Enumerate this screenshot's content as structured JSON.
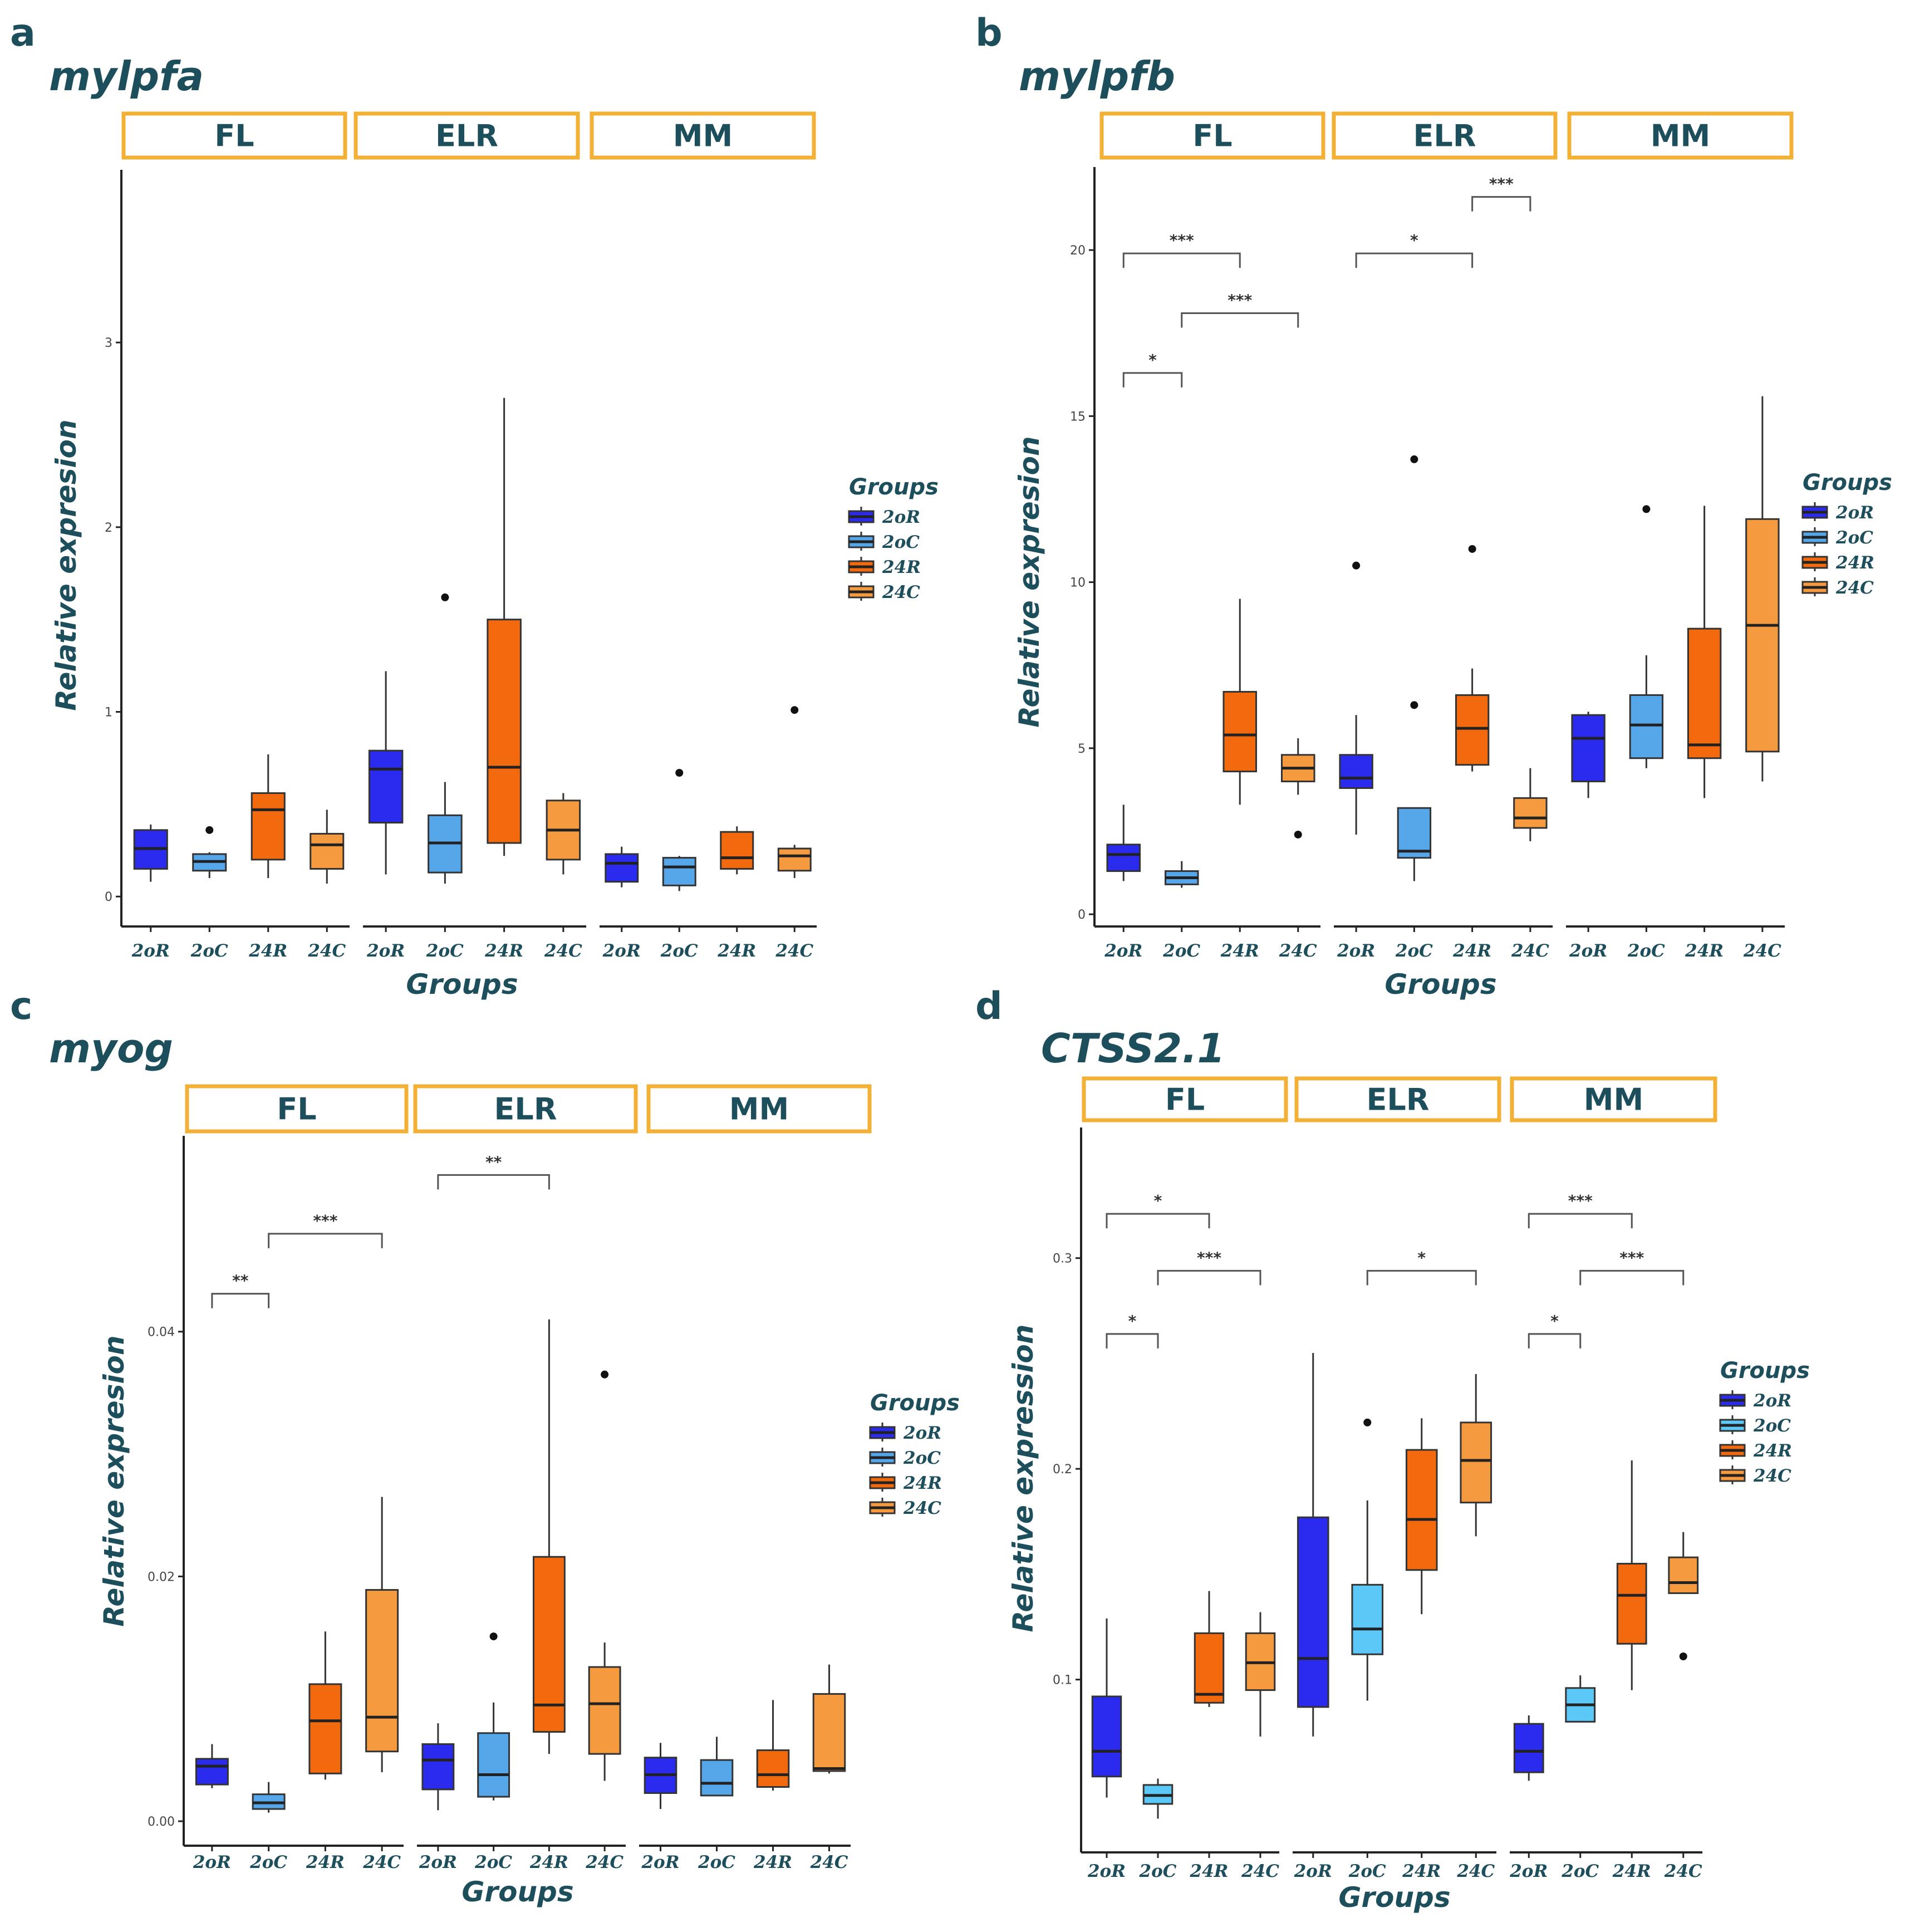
{
  "colors": {
    "20R": "#2b2bef",
    "20C": "#56a6ea",
    "24R": "#f36a0e",
    "24C": "#f59a3e",
    "24C_d": "#f59a3e",
    "20C_d": "#5bc8f7",
    "strip_border": "#f2b035",
    "text": "#1d4e5c"
  },
  "chart_data": [
    {
      "type": "box",
      "panel": "a",
      "title": "mylpfa",
      "ylabel": "Relative expresion",
      "xlabel": "Groups",
      "ylim": [
        -0.15,
        3.95
      ],
      "yticks": [
        0,
        1,
        2,
        3
      ],
      "yticks_label": [
        "0",
        "1",
        "2",
        "3"
      ],
      "facets": [
        "FL",
        "ELR",
        "MM"
      ],
      "groups": [
        "20R",
        "20C",
        "24R",
        "24C"
      ],
      "group_labels": [
        "2oR",
        "2oC",
        "24R",
        "24C"
      ],
      "legend": {
        "title": "Groups",
        "labels": [
          "2oR",
          "2oC",
          "24R",
          "24C"
        ]
      },
      "boxes": [
        [
          [
            0.08,
            0.15,
            0.26,
            0.36,
            0.39,
            []
          ],
          [
            0.1,
            0.14,
            0.19,
            0.23,
            0.24,
            [
              0.36
            ]
          ],
          [
            0.1,
            0.2,
            0.47,
            0.56,
            0.77,
            []
          ],
          [
            0.07,
            0.15,
            0.28,
            0.34,
            0.47,
            []
          ]
        ],
        [
          [
            0.12,
            0.4,
            0.69,
            0.79,
            1.22,
            []
          ],
          [
            0.07,
            0.13,
            0.29,
            0.44,
            0.62,
            [
              1.62
            ]
          ],
          [
            0.22,
            0.29,
            0.7,
            1.5,
            2.7,
            []
          ],
          [
            0.12,
            0.2,
            0.36,
            0.52,
            0.56,
            []
          ]
        ],
        [
          [
            0.05,
            0.08,
            0.18,
            0.23,
            0.27,
            []
          ],
          [
            0.03,
            0.06,
            0.16,
            0.21,
            0.22,
            [
              0.67
            ]
          ],
          [
            0.12,
            0.15,
            0.21,
            0.35,
            0.38,
            []
          ],
          [
            0.1,
            0.14,
            0.22,
            0.26,
            0.28,
            [
              1.01
            ]
          ]
        ]
      ],
      "significance": []
    },
    {
      "type": "box",
      "panel": "b",
      "title": "mylpfb",
      "ylabel": "Relative expresion",
      "xlabel": "Groups",
      "ylim": [
        -0.3,
        22.5
      ],
      "yticks": [
        0,
        5,
        10,
        15,
        20
      ],
      "yticks_label": [
        "0",
        "5",
        "10",
        "15",
        "20"
      ],
      "facets": [
        "FL",
        "ELR",
        "MM"
      ],
      "groups": [
        "20R",
        "20C",
        "24R",
        "24C"
      ],
      "group_labels": [
        "2oR",
        "2oC",
        "24R",
        "24C"
      ],
      "legend": {
        "title": "Groups",
        "labels": [
          "2oR",
          "2oC",
          "24R",
          "24C"
        ]
      },
      "boxes": [
        [
          [
            1.0,
            1.3,
            1.8,
            2.1,
            3.3,
            []
          ],
          [
            0.8,
            0.9,
            1.1,
            1.3,
            1.6,
            []
          ],
          [
            3.3,
            4.3,
            5.4,
            6.7,
            9.5,
            []
          ],
          [
            3.6,
            4.0,
            4.4,
            4.8,
            5.3,
            [
              2.4
            ]
          ]
        ],
        [
          [
            2.4,
            3.8,
            4.1,
            4.8,
            6.0,
            [
              10.5
            ]
          ],
          [
            1.0,
            1.7,
            1.9,
            3.2,
            3.2,
            [
              6.3,
              13.7
            ]
          ],
          [
            4.3,
            4.5,
            5.6,
            6.6,
            7.4,
            [
              11.0
            ]
          ],
          [
            2.2,
            2.6,
            2.9,
            3.5,
            4.4,
            []
          ]
        ],
        [
          [
            3.5,
            4.0,
            5.3,
            6.0,
            6.1,
            []
          ],
          [
            4.4,
            4.7,
            5.7,
            6.6,
            7.8,
            [
              12.2
            ]
          ],
          [
            3.5,
            4.7,
            5.1,
            8.6,
            12.3,
            []
          ],
          [
            4.0,
            4.9,
            8.7,
            11.9,
            15.6,
            []
          ]
        ]
      ],
      "significance": [
        {
          "facet": 0,
          "from": 0,
          "to": 1,
          "y": 16.3,
          "label": "*"
        },
        {
          "facet": 0,
          "from": 0,
          "to": 2,
          "y": 19.9,
          "label": "***"
        },
        {
          "facet": 0,
          "from": 1,
          "to": 3,
          "y": 18.1,
          "label": "***"
        },
        {
          "facet": 1,
          "from": 0,
          "to": 2,
          "y": 19.9,
          "label": "*"
        },
        {
          "facet": 1,
          "from": 2,
          "to": 3,
          "y": 21.6,
          "label": "***"
        }
      ]
    },
    {
      "type": "box",
      "panel": "c",
      "title": "myog",
      "ylabel": "Relative expresion",
      "xlabel": "Groups",
      "ylim": [
        -0.002,
        0.056
      ],
      "yticks": [
        0,
        0.02,
        0.04
      ],
      "yticks_label": [
        "0.00",
        "0.02",
        "0.04"
      ],
      "facets": [
        "FL",
        "ELR",
        "MM"
      ],
      "groups": [
        "20R",
        "20C",
        "24R",
        "24C"
      ],
      "group_labels": [
        "2oR",
        "2oC",
        "24R",
        "24C"
      ],
      "legend": {
        "title": "Groups",
        "labels": [
          "2oR",
          "2oC",
          "24R",
          "24C"
        ]
      },
      "boxes": [
        [
          [
            0.0027,
            0.003,
            0.0045,
            0.0051,
            0.0063,
            []
          ],
          [
            0.0007,
            0.001,
            0.0015,
            0.0022,
            0.0032,
            []
          ],
          [
            0.0034,
            0.0039,
            0.0082,
            0.0112,
            0.0155,
            []
          ],
          [
            0.004,
            0.0057,
            0.0085,
            0.0189,
            0.0265,
            []
          ]
        ],
        [
          [
            0.0009,
            0.0026,
            0.005,
            0.0063,
            0.008,
            []
          ],
          [
            0.0017,
            0.002,
            0.0038,
            0.0072,
            0.0097,
            [
              0.0151
            ]
          ],
          [
            0.0055,
            0.0073,
            0.0095,
            0.0216,
            0.041,
            []
          ],
          [
            0.0033,
            0.0055,
            0.0096,
            0.0126,
            0.0146,
            [
              0.0365
            ]
          ]
        ],
        [
          [
            0.001,
            0.0023,
            0.0038,
            0.0052,
            0.0064,
            []
          ],
          [
            0.0022,
            0.0021,
            0.0031,
            0.005,
            0.0069,
            []
          ],
          [
            0.0025,
            0.0028,
            0.0038,
            0.0058,
            0.0099,
            []
          ],
          [
            0.0039,
            0.0041,
            0.0043,
            0.0104,
            0.0128,
            []
          ]
        ]
      ],
      "significance": [
        {
          "facet": 0,
          "from": 0,
          "to": 1,
          "y": 0.0431,
          "label": "**"
        },
        {
          "facet": 0,
          "from": 1,
          "to": 3,
          "y": 0.048,
          "label": "***"
        },
        {
          "facet": 1,
          "from": 0,
          "to": 2,
          "y": 0.0528,
          "label": "**"
        }
      ]
    },
    {
      "type": "box",
      "panel": "d",
      "title": "CTSS2.1",
      "ylabel": "Relative expression",
      "xlabel": "Groups",
      "ylim": [
        0.018,
        0.362
      ],
      "yticks": [
        0.1,
        0.2,
        0.3
      ],
      "yticks_label": [
        "0.1",
        "0.2",
        "0.3"
      ],
      "facets": [
        "FL",
        "ELR",
        "MM"
      ],
      "groups": [
        "20R",
        "20C",
        "24R",
        "24C"
      ],
      "group_labels": [
        "2oR",
        "2oC",
        "24R",
        "24C"
      ],
      "legend": {
        "title": "Groups",
        "labels": [
          "2oR",
          "2oC",
          "24R",
          "24C"
        ]
      },
      "boxes": [
        [
          [
            0.044,
            0.054,
            0.066,
            0.092,
            0.129,
            []
          ],
          [
            0.034,
            0.041,
            0.045,
            0.05,
            0.053,
            []
          ],
          [
            0.087,
            0.089,
            0.093,
            0.122,
            0.142,
            []
          ],
          [
            0.073,
            0.095,
            0.108,
            0.122,
            0.132,
            []
          ]
        ],
        [
          [
            0.073,
            0.087,
            0.11,
            0.177,
            0.255,
            []
          ],
          [
            0.09,
            0.112,
            0.124,
            0.145,
            0.185,
            [
              0.222
            ]
          ],
          [
            0.131,
            0.152,
            0.176,
            0.209,
            0.224,
            []
          ],
          [
            0.168,
            0.184,
            0.204,
            0.222,
            0.245,
            []
          ]
        ],
        [
          [
            0.052,
            0.056,
            0.066,
            0.079,
            0.083,
            []
          ],
          [
            0.08,
            0.08,
            0.088,
            0.096,
            0.102,
            []
          ],
          [
            0.095,
            0.117,
            0.14,
            0.155,
            0.204,
            []
          ],
          [
            0.141,
            0.141,
            0.146,
            0.158,
            0.17,
            [
              0.111
            ]
          ]
        ]
      ],
      "significance": [
        {
          "facet": 0,
          "from": 0,
          "to": 1,
          "y": 0.264,
          "label": "*"
        },
        {
          "facet": 0,
          "from": 0,
          "to": 2,
          "y": 0.321,
          "label": "*"
        },
        {
          "facet": 0,
          "from": 1,
          "to": 3,
          "y": 0.294,
          "label": "***"
        },
        {
          "facet": 1,
          "from": 1,
          "to": 3,
          "y": 0.294,
          "label": "*"
        },
        {
          "facet": 2,
          "from": 0,
          "to": 1,
          "y": 0.264,
          "label": "*"
        },
        {
          "facet": 2,
          "from": 0,
          "to": 2,
          "y": 0.321,
          "label": "***"
        },
        {
          "facet": 2,
          "from": 1,
          "to": 3,
          "y": 0.294,
          "label": "***"
        }
      ]
    }
  ]
}
